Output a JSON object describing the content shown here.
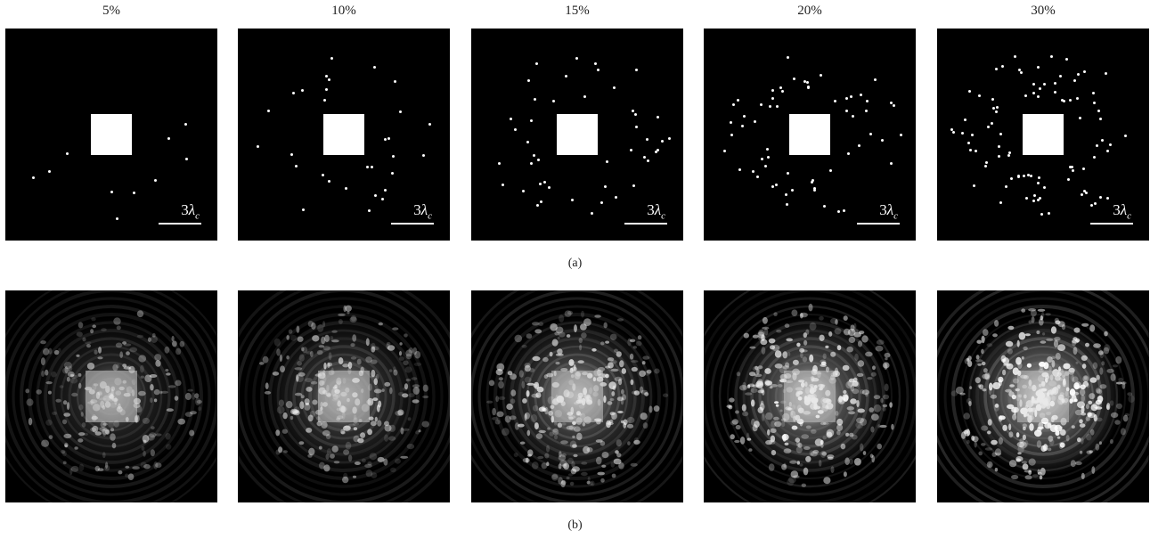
{
  "figure": {
    "column_labels": [
      "5%",
      "10%",
      "15%",
      "20%",
      "30%"
    ],
    "row_a_label": "(a)",
    "row_b_label": "(b)",
    "scale_bar": {
      "number": "3",
      "symbol": "λ",
      "subscript": "c"
    },
    "colors": {
      "background": "#000000",
      "scatterer": "#ffffff",
      "page": "#ffffff"
    }
  }
}
